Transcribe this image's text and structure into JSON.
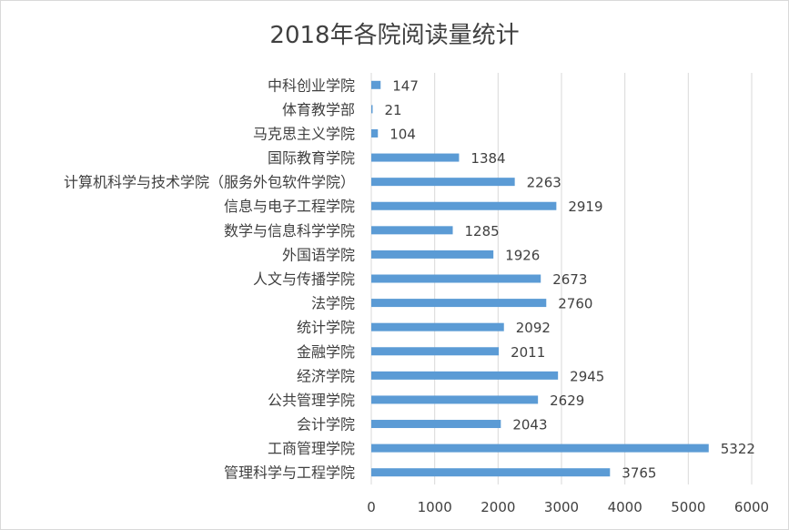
{
  "chart_data": {
    "type": "bar",
    "orientation": "horizontal",
    "title": "2018年各院阅读量统计",
    "categories": [
      "中科创业学院",
      "体育教学部",
      "马克思主义学院",
      "国际教育学院",
      "计算机科学与技术学院（服务外包软件学院）",
      "信息与电子工程学院",
      "数学与信息科学学院",
      "外国语学院",
      "人文与传播学院",
      "法学院",
      "统计学院",
      "金融学院",
      "经济学院",
      "公共管理学院",
      "会计学院",
      "工商管理学院",
      "管理科学与工程学院"
    ],
    "values": [
      147,
      21,
      104,
      1384,
      2263,
      2919,
      1285,
      1926,
      2673,
      2760,
      2092,
      2011,
      2945,
      2629,
      2043,
      5322,
      3765
    ],
    "xlim": [
      0,
      6000
    ],
    "xticks": [
      0,
      1000,
      2000,
      3000,
      4000,
      5000,
      6000
    ],
    "grid": "vertical",
    "data_labels": true,
    "legend": "none",
    "bar_color": "#5b9bd5",
    "grid_color": "#d9d9d9",
    "text_color": "#404040"
  }
}
